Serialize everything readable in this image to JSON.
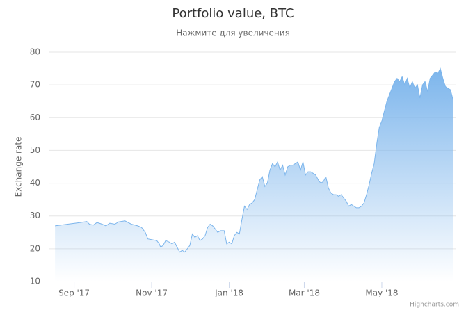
{
  "chart_data": {
    "type": "area",
    "title": "Portfolio value, BTC",
    "subtitle": "Нажмите для увеличения",
    "y_axis_label": "Exchange rate",
    "credits": "Highcharts.com",
    "color": "#7cb5ec",
    "grid": true,
    "xlim": [
      -20,
      300
    ],
    "xticks": [
      {
        "value": 0,
        "label": "Sep '17"
      },
      {
        "value": 61,
        "label": "Nov '17"
      },
      {
        "value": 122,
        "label": "Jan '18"
      },
      {
        "value": 181,
        "label": "Mar '18"
      },
      {
        "value": 242,
        "label": "May '18"
      }
    ],
    "ylim": [
      10,
      80
    ],
    "yticks": [
      10,
      20,
      30,
      40,
      50,
      60,
      70,
      80
    ],
    "x": [
      -15,
      -5,
      5,
      10,
      12,
      15,
      18,
      22,
      25,
      28,
      32,
      35,
      40,
      45,
      50,
      53,
      56,
      58,
      62,
      65,
      67,
      68,
      70,
      72,
      75,
      77,
      79,
      81,
      83,
      85,
      87,
      89,
      91,
      93,
      95,
      97,
      99,
      101,
      103,
      105,
      107,
      109,
      111,
      113,
      115,
      118,
      120,
      122,
      124,
      126,
      128,
      130,
      132,
      134,
      136,
      138,
      140,
      142,
      144,
      146,
      148,
      150,
      152,
      154,
      156,
      158,
      160,
      162,
      164,
      166,
      168,
      170,
      172,
      174,
      176,
      178,
      180,
      182,
      184,
      186,
      188,
      190,
      192,
      194,
      196,
      198,
      200,
      202,
      204,
      206,
      208,
      210,
      212,
      214,
      216,
      218,
      220,
      222,
      224,
      226,
      228,
      230,
      232,
      234,
      236,
      238,
      240,
      242,
      244,
      246,
      248,
      250,
      252,
      254,
      256,
      258,
      260,
      262,
      264,
      266,
      268,
      270,
      272,
      274,
      276,
      278,
      280,
      282,
      284,
      286,
      288,
      290,
      292,
      294,
      296,
      297,
      298
    ],
    "values": [
      27,
      27.5,
      28,
      28.3,
      27.5,
      27.2,
      28,
      27.5,
      27,
      27.8,
      27.5,
      28.2,
      28.5,
      27.5,
      27,
      26.5,
      25,
      23,
      22.7,
      22.5,
      21.5,
      20.5,
      21,
      22.5,
      22,
      21.5,
      22,
      20.5,
      19,
      19.5,
      19,
      20,
      21,
      24.5,
      23.5,
      24,
      22.5,
      23,
      24,
      26.5,
      27.5,
      27,
      26,
      25,
      25.5,
      25.5,
      21.5,
      22,
      21.5,
      24,
      25,
      24.5,
      29,
      33,
      32,
      33.5,
      34,
      35,
      38,
      41,
      42,
      39,
      40,
      44,
      46,
      45,
      46.5,
      44,
      45.5,
      42.5,
      45,
      45.5,
      45.5,
      46,
      46.5,
      44,
      46.5,
      42.5,
      43.5,
      43.5,
      43,
      42.5,
      41,
      40,
      40.5,
      42,
      38.5,
      37,
      36.5,
      36.5,
      36,
      36.5,
      35.5,
      34.5,
      33,
      33.5,
      33,
      32.5,
      32.5,
      33,
      34,
      36.5,
      39.5,
      43,
      46,
      52,
      57,
      59,
      62,
      65,
      67,
      69,
      71,
      72,
      71,
      72.5,
      70,
      72,
      69,
      71,
      69,
      70,
      66,
      70,
      71,
      68,
      72,
      73,
      74,
      73.5,
      75,
      72,
      69.5,
      69,
      68.5,
      67,
      65.5
    ]
  }
}
